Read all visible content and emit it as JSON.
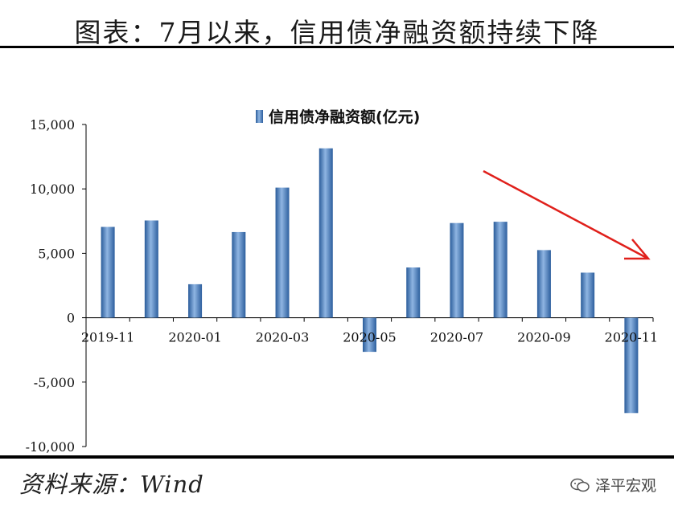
{
  "figure": {
    "title": "图表：7月以来，信用债净融资额持续下降",
    "source": "资料来源：Wind",
    "watermark": "泽平宏观",
    "watermark_icon": "wechat-icon",
    "trend_arrow_color": "#e0201b"
  },
  "chart_data": {
    "type": "bar",
    "legend": "信用债净融资额(亿元)",
    "legend_position": "top-center",
    "categories": [
      "2019-11",
      "2019-12",
      "2020-01",
      "2020-02",
      "2020-03",
      "2020-04",
      "2020-05",
      "2020-06",
      "2020-07",
      "2020-08",
      "2020-09",
      "2020-10",
      "2020-11"
    ],
    "x_tick_labels": [
      "2019-11",
      "2020-01",
      "2020-03",
      "2020-05",
      "2020-07",
      "2020-09",
      "2020-11"
    ],
    "y_ticks": [
      15000,
      10000,
      5000,
      0,
      -5000,
      -10000
    ],
    "y_tick_labels": [
      "15,000",
      "10,000",
      "5,000",
      "0",
      "-5,000",
      "-10,000"
    ],
    "ylim": [
      -10000,
      15000
    ],
    "series": [
      {
        "name": "信用债净融资额(亿元)",
        "color": "#3f76b8",
        "values": [
          7050,
          7550,
          2600,
          6650,
          10100,
          13150,
          -2650,
          3900,
          7350,
          7450,
          5250,
          3500,
          -7400
        ]
      }
    ],
    "grid": false
  }
}
